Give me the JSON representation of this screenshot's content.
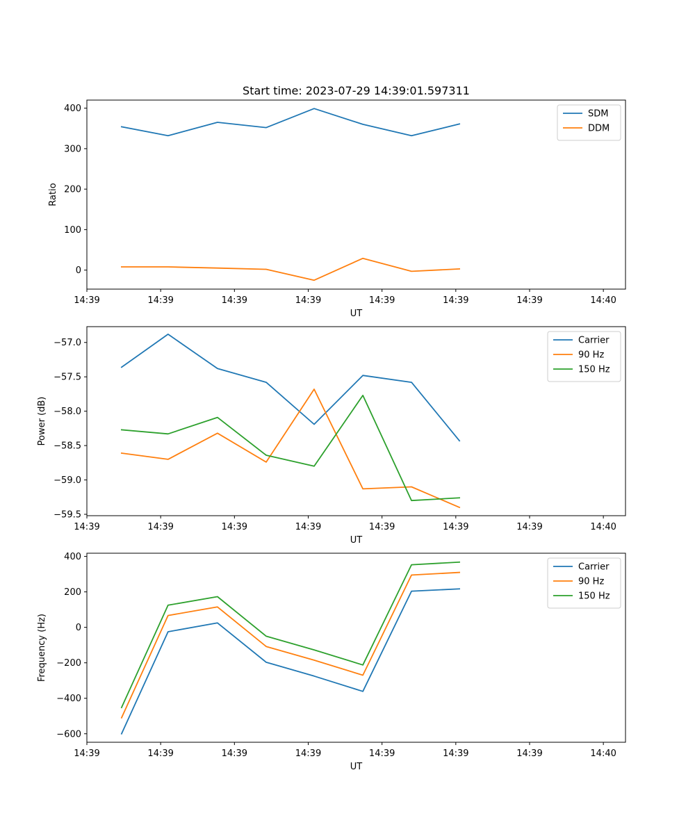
{
  "figure_title": "Start time: 2023-07-29 14:39:01.597311",
  "colors": {
    "blue": "#1f77b4",
    "orange": "#ff7f0e",
    "green": "#2ca02c"
  },
  "chart_data": [
    {
      "type": "line",
      "name": "ratio",
      "title": "Start time: 2023-07-29 14:39:01.597311",
      "xlabel": "UT",
      "ylabel": "Ratio",
      "xlim": [
        0,
        7.3
      ],
      "xticks": [
        0,
        1,
        2,
        3,
        4,
        5,
        6,
        7
      ],
      "xtick_labels": [
        "14:39",
        "14:39",
        "14:39",
        "14:39",
        "14:39",
        "14:39",
        "14:39",
        "14:40"
      ],
      "ylim": [
        -47,
        420
      ],
      "yticks": [
        0,
        100,
        200,
        300,
        400
      ],
      "ytick_labels": [
        "0",
        "100",
        "200",
        "300",
        "400"
      ],
      "x": [
        0.47,
        1.1,
        1.77,
        2.43,
        3.08,
        3.74,
        4.4,
        5.05
      ],
      "series": [
        {
          "name": "SDM",
          "color": "#1f77b4",
          "values": [
            354,
            332,
            365,
            352,
            399,
            360,
            332,
            361
          ]
        },
        {
          "name": "DDM",
          "color": "#ff7f0e",
          "values": [
            8,
            8,
            5,
            2,
            -25,
            29,
            -3,
            3
          ]
        }
      ],
      "legend": "top-right"
    },
    {
      "type": "line",
      "name": "power",
      "title": "",
      "xlabel": "UT",
      "ylabel": "Power (dB)",
      "xlim": [
        0,
        7.3
      ],
      "xticks": [
        0,
        1,
        2,
        3,
        4,
        5,
        6,
        7
      ],
      "xtick_labels": [
        "14:39",
        "14:39",
        "14:39",
        "14:39",
        "14:39",
        "14:39",
        "14:39",
        "14:40"
      ],
      "ylim": [
        -59.52,
        -56.77
      ],
      "yticks": [
        -57.0,
        -57.5,
        -58.0,
        -58.5,
        -59.0,
        -59.5
      ],
      "ytick_labels": [
        "−57.0",
        "−57.5",
        "−58.0",
        "−58.5",
        "−59.0",
        "−59.5"
      ],
      "x": [
        0.47,
        1.1,
        1.77,
        2.43,
        3.08,
        3.74,
        4.4,
        5.05
      ],
      "series": [
        {
          "name": "Carrier",
          "color": "#1f77b4",
          "values": [
            -57.36,
            -56.88,
            -57.38,
            -57.58,
            -58.19,
            -57.48,
            -57.58,
            -58.43
          ]
        },
        {
          "name": "90 Hz",
          "color": "#ff7f0e",
          "values": [
            -58.61,
            -58.7,
            -58.32,
            -58.74,
            -57.68,
            -59.13,
            -59.1,
            -59.4
          ]
        },
        {
          "name": "150 Hz",
          "color": "#2ca02c",
          "values": [
            -58.27,
            -58.33,
            -58.09,
            -58.64,
            -58.8,
            -57.77,
            -59.3,
            -59.26
          ]
        }
      ],
      "legend": "top-right"
    },
    {
      "type": "line",
      "name": "frequency",
      "title": "",
      "xlabel": "UT",
      "ylabel": "Frequency (Hz)",
      "xlim": [
        0,
        7.3
      ],
      "xticks": [
        0,
        1,
        2,
        3,
        4,
        5,
        6,
        7
      ],
      "xtick_labels": [
        "14:39",
        "14:39",
        "14:39",
        "14:39",
        "14:39",
        "14:39",
        "14:39",
        "14:40"
      ],
      "ylim": [
        -648,
        418
      ],
      "yticks": [
        400,
        200,
        0,
        -200,
        -400,
        -600
      ],
      "ytick_labels": [
        "400",
        "200",
        "0",
        "−200",
        "−400",
        "−600"
      ],
      "x": [
        0.47,
        1.1,
        1.77,
        2.43,
        3.08,
        3.74,
        4.4,
        5.05
      ],
      "series": [
        {
          "name": "Carrier",
          "color": "#1f77b4",
          "values": [
            -600,
            -25,
            25,
            -197,
            -275,
            -361,
            204,
            217
          ]
        },
        {
          "name": "90 Hz",
          "color": "#ff7f0e",
          "values": [
            -510,
            67,
            115,
            -108,
            -185,
            -270,
            295,
            310
          ]
        },
        {
          "name": "150 Hz",
          "color": "#2ca02c",
          "values": [
            -452,
            125,
            173,
            -50,
            -127,
            -212,
            353,
            368
          ]
        }
      ],
      "legend": "top-right"
    }
  ]
}
